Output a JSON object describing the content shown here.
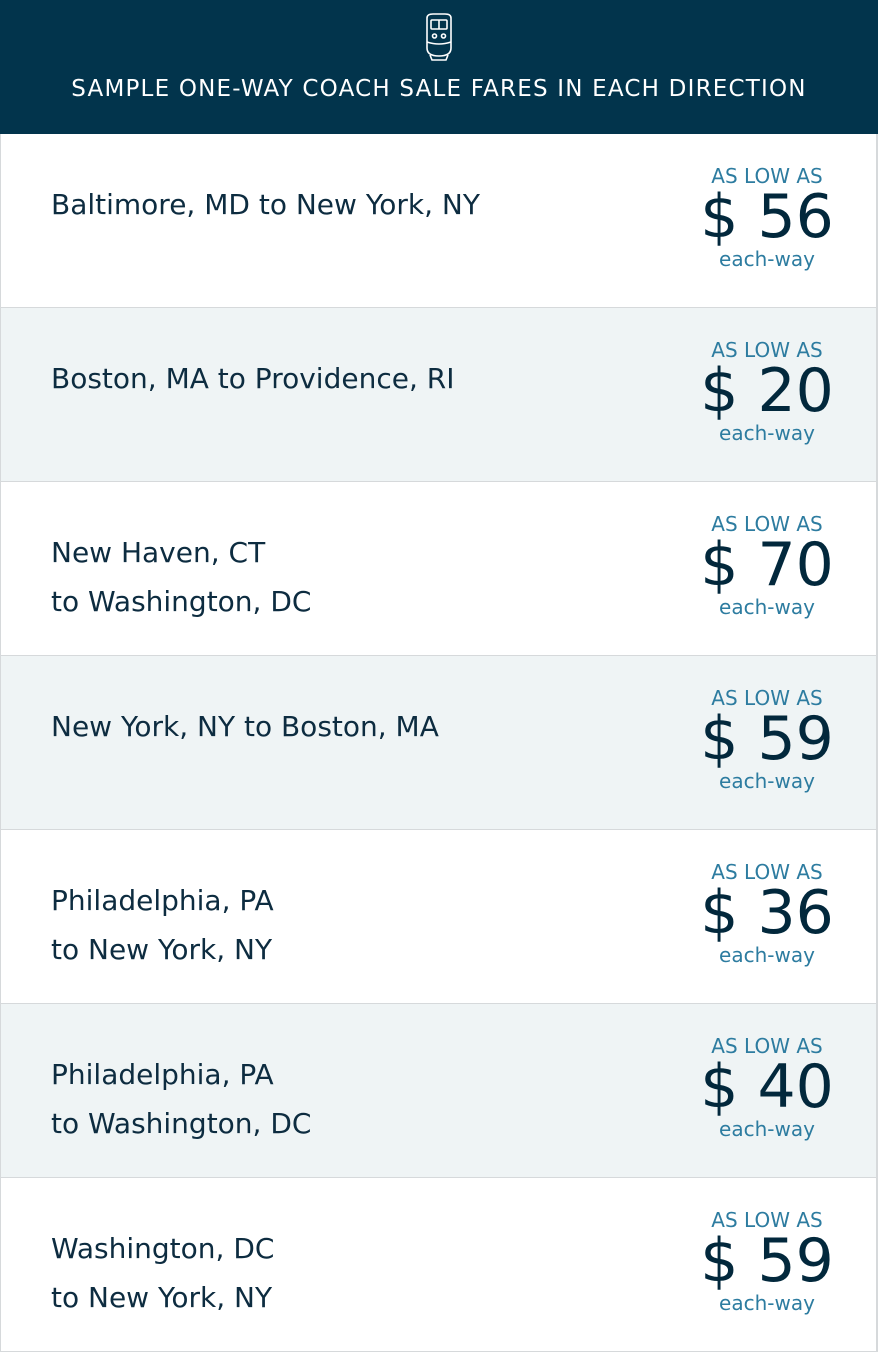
{
  "header": {
    "icon": "train-icon",
    "title": "SAMPLE ONE-WAY COACH SALE FARES IN EACH DIRECTION"
  },
  "colors": {
    "header_bg": "#02344c",
    "accent": "#2d7ca0",
    "alt_row": "#eff4f5"
  },
  "fares": [
    {
      "route": [
        "Baltimore, MD to New York, NY"
      ],
      "prefix": "AS LOW AS",
      "price": "$ 56",
      "suffix": "each-way"
    },
    {
      "route": [
        "Boston, MA to Providence, RI"
      ],
      "prefix": "AS LOW AS",
      "price": "$ 20",
      "suffix": "each-way"
    },
    {
      "route": [
        "New Haven, CT",
        "to Washington, DC"
      ],
      "prefix": "AS LOW AS",
      "price": "$ 70",
      "suffix": "each-way"
    },
    {
      "route": [
        "New York, NY to Boston, MA"
      ],
      "prefix": "AS LOW AS",
      "price": "$ 59",
      "suffix": "each-way"
    },
    {
      "route": [
        "Philadelphia, PA",
        "to New York, NY"
      ],
      "prefix": "AS LOW AS",
      "price": "$ 36",
      "suffix": "each-way"
    },
    {
      "route": [
        "Philadelphia, PA",
        "to Washington, DC"
      ],
      "prefix": "AS LOW AS",
      "price": "$ 40",
      "suffix": "each-way"
    },
    {
      "route": [
        "Washington, DC",
        "to New York, NY"
      ],
      "prefix": "AS LOW AS",
      "price": "$ 59",
      "suffix": "each-way"
    }
  ]
}
